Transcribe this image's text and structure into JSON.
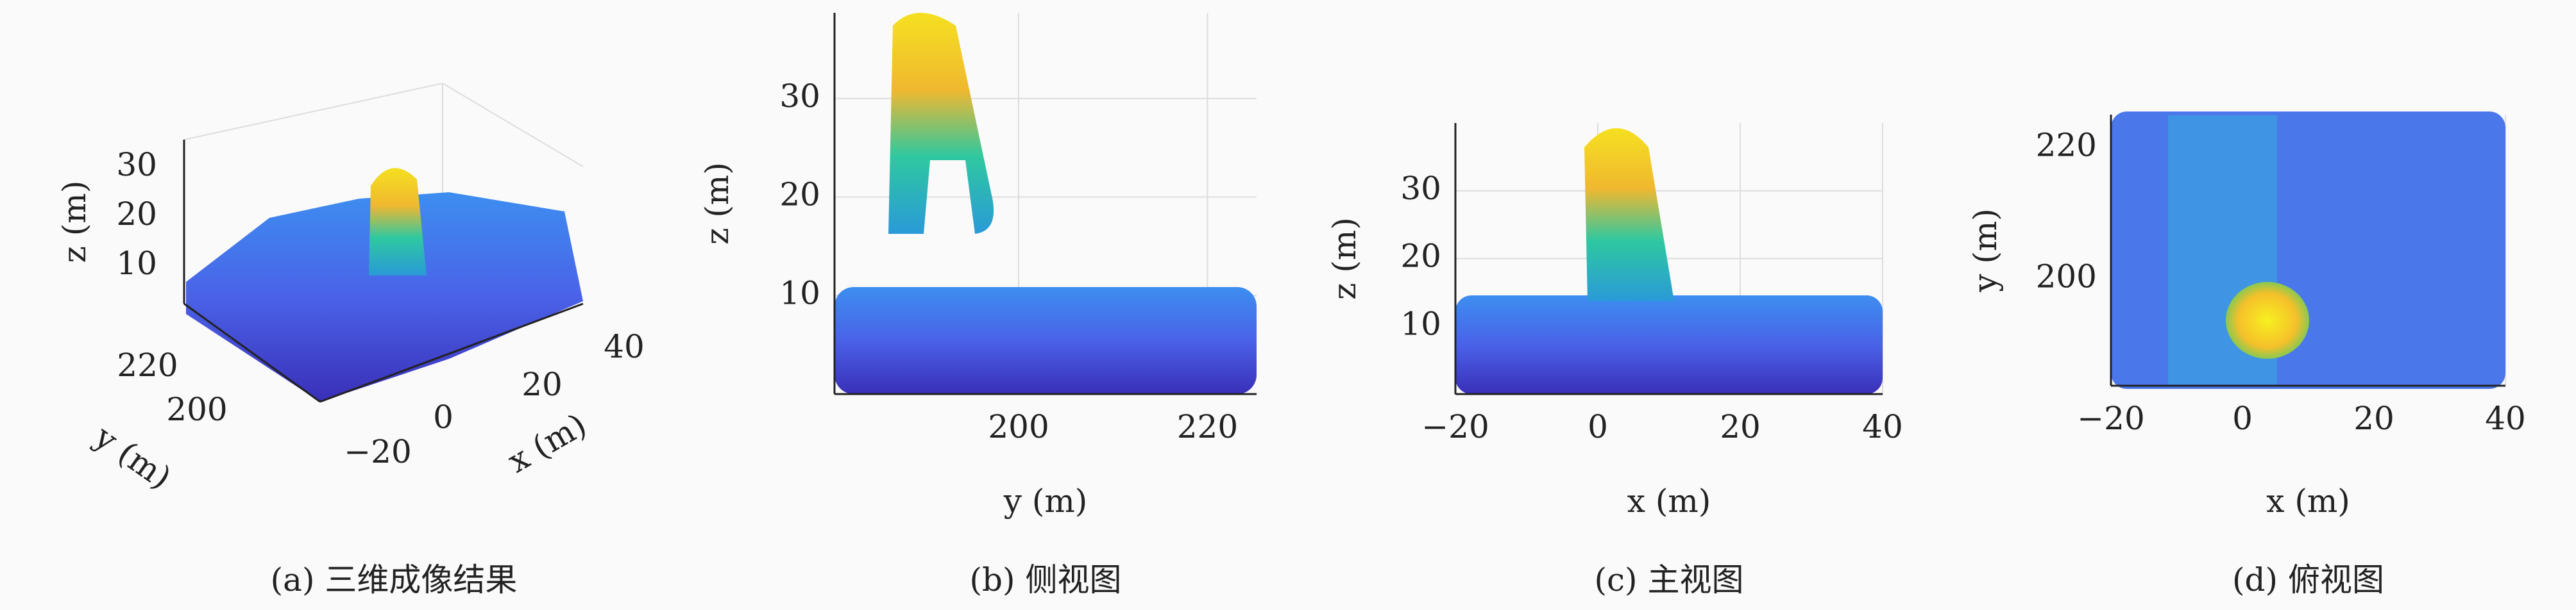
{
  "chart_data": [
    {
      "type": "scatter3d",
      "caption": "(a) 三维成像结果",
      "xlabel": "x (m)",
      "ylabel": "y (m)",
      "zlabel": "z (m)",
      "xticks": [
        {
          "value": -20,
          "label": "−20"
        },
        0,
        20,
        40
      ],
      "yticks": [
        200,
        220
      ],
      "zticks": [
        10,
        20,
        30
      ]
    },
    {
      "type": "scatter",
      "caption": "(b) 侧视图",
      "xlabel": "y (m)",
      "ylabel": "z (m)",
      "xlim": [
        180.5,
        225.2
      ],
      "ylim": [
        0,
        38.7
      ],
      "xticks": [
        200,
        220
      ],
      "yticks": [
        10,
        20,
        30
      ],
      "grid": true
    },
    {
      "type": "scatter",
      "caption": "(c) 主视图",
      "xlabel": "x (m)",
      "ylabel": "z (m)",
      "xlim": [
        -20,
        40
      ],
      "ylim": [
        0,
        40
      ],
      "xticks": [
        {
          "value": -20,
          "label": "−20"
        },
        0,
        20,
        40
      ],
      "yticks": [
        10,
        20,
        30
      ],
      "grid": true
    },
    {
      "type": "scatter",
      "caption": "(d) 俯视图",
      "xlabel": "x (m)",
      "ylabel": "y (m)",
      "xlim": [
        -20,
        40
      ],
      "ylim": [
        183.75,
        225
      ],
      "xticks": [
        {
          "value": -20,
          "label": "−20"
        },
        0,
        20,
        40
      ],
      "yticks": [
        200,
        220
      ],
      "grid": true
    }
  ]
}
